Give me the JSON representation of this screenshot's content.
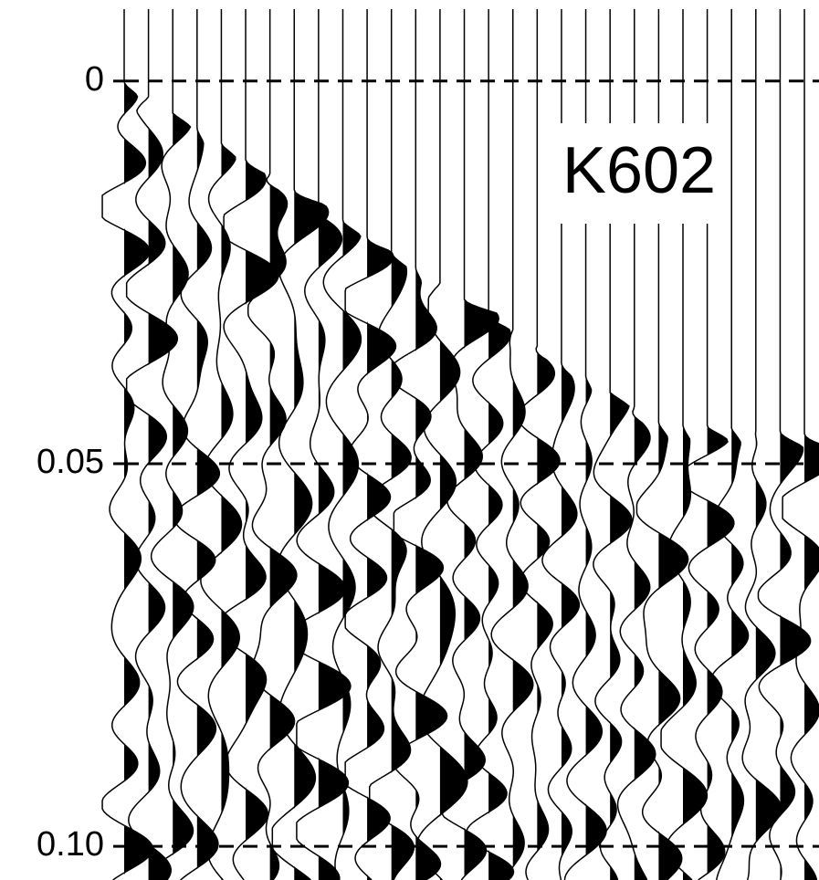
{
  "chart_data": {
    "type": "seismic",
    "title": "K602",
    "ylim": [
      -0.0094,
      0.1044
    ],
    "y_inverted": true,
    "yticks": [
      {
        "value": 0,
        "label": "0"
      },
      {
        "value": 0.05,
        "label": "0.05"
      },
      {
        "value": 0.1,
        "label": "0.10"
      }
    ],
    "grid": true,
    "grid_style": "dashed",
    "color": "#000000"
  }
}
